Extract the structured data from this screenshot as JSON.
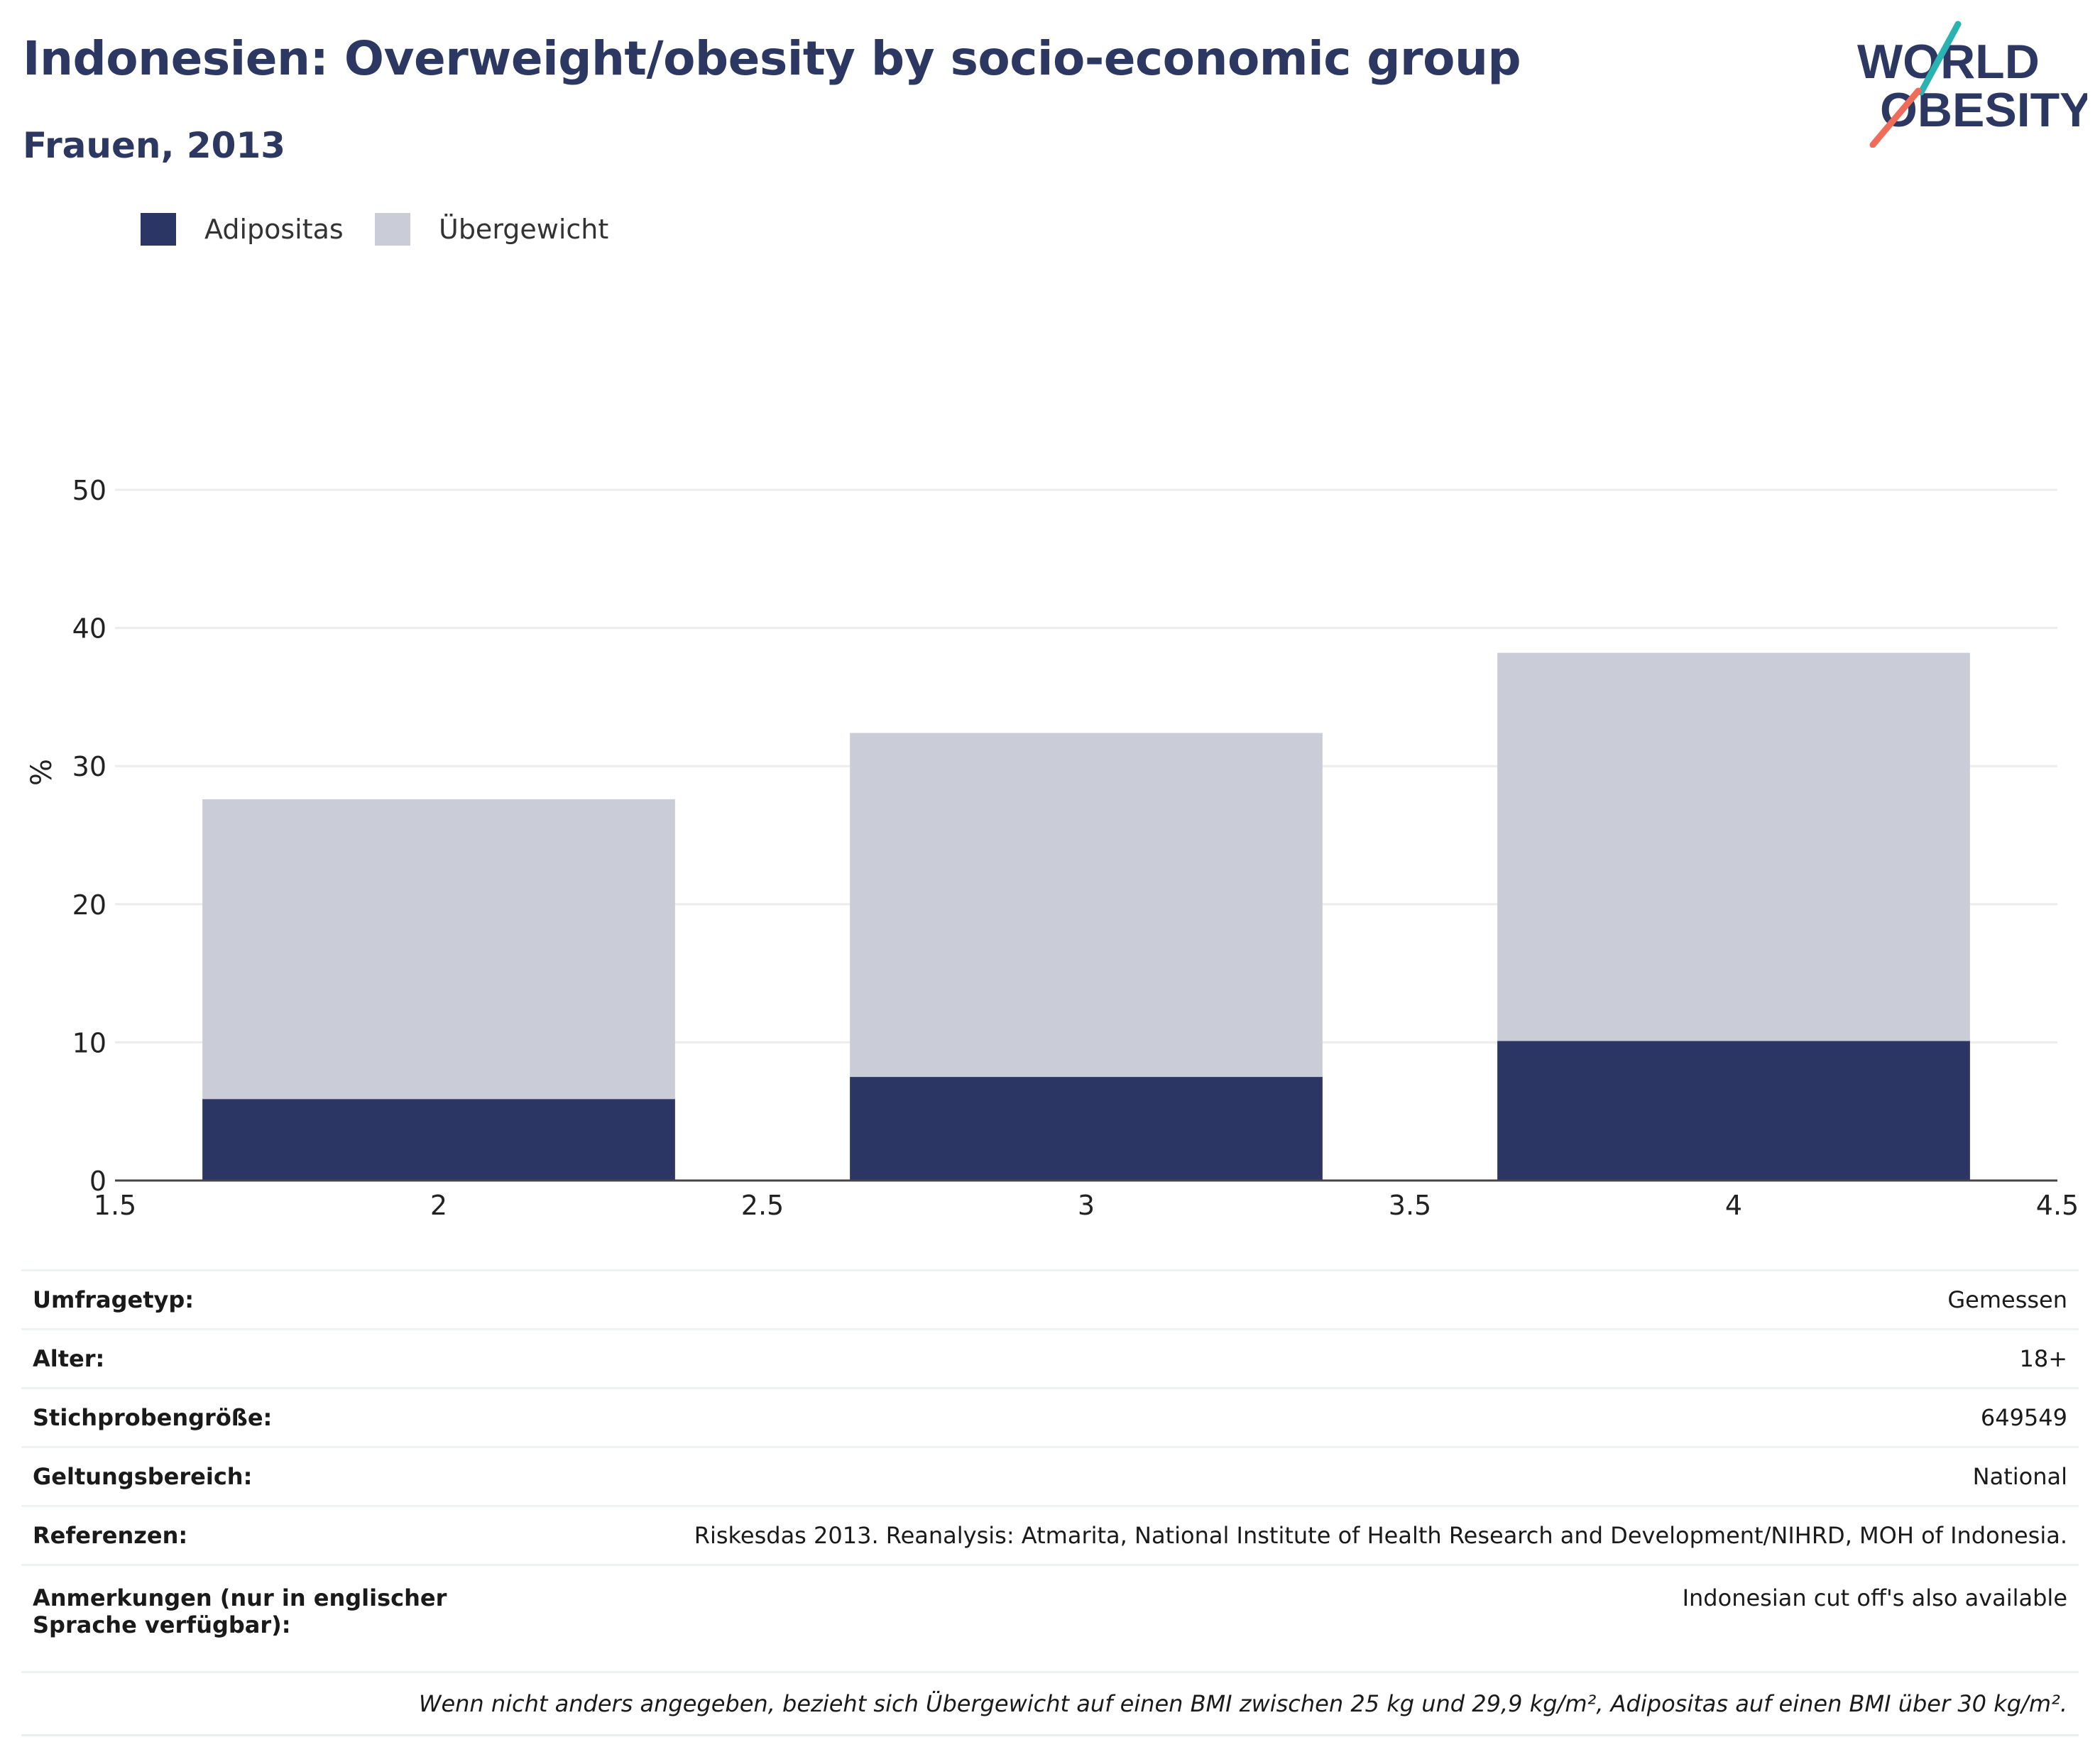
{
  "title": "Indonesien: Overweight/obesity by socio-economic group",
  "subtitle": "Frauen, 2013",
  "logo": {
    "line1": "WORLD",
    "line2": "OBESITY"
  },
  "colors": {
    "title": "#2c3862",
    "obesity": "#2b3664",
    "overweight": "#cacdd8",
    "grid": "#ececec",
    "logo_teal": "#2bb3b1",
    "logo_coral": "#ef6c5a"
  },
  "legend": [
    {
      "label": "Adipositas",
      "color": "#2b3664"
    },
    {
      "label": "Übergewicht",
      "color": "#cacdd8"
    }
  ],
  "chart_data": {
    "type": "bar",
    "stacked": true,
    "title": "Indonesien: Overweight/obesity by socio-economic group",
    "subtitle": "Frauen, 2013",
    "xlabel": "",
    "ylabel": "%",
    "x": [
      2,
      3,
      4
    ],
    "xlim": [
      1.5,
      4.5
    ],
    "ylim": [
      0,
      50
    ],
    "xticks": [
      "1.5",
      "2",
      "2.5",
      "3",
      "3.5",
      "4",
      "4.5"
    ],
    "yticks": [
      "0",
      "10",
      "20",
      "30",
      "40",
      "50"
    ],
    "grid": true,
    "legend_position": "top-left",
    "series": [
      {
        "name": "Adipositas",
        "values": [
          5.9,
          7.5,
          10.1
        ],
        "color": "#2b3664"
      },
      {
        "name": "Übergewicht",
        "values": [
          21.7,
          24.9,
          28.1
        ],
        "color": "#cacdd8"
      }
    ]
  },
  "info": [
    {
      "key": "Umfragetyp:",
      "value": "Gemessen"
    },
    {
      "key": "Alter:",
      "value": "18+"
    },
    {
      "key": "Stichprobengröße:",
      "value": "649549"
    },
    {
      "key": "Geltungsbereich:",
      "value": "National"
    },
    {
      "key": "Referenzen:",
      "value": "Riskesdas 2013. Reanalysis: Atmarita, National Institute of Health Research and Development/NIHRD, MOH of Indonesia."
    },
    {
      "key": "Anmerkungen (nur in englischer Sprache verfügbar):",
      "value": "Indonesian cut off's also available"
    }
  ],
  "footnote": "Wenn nicht anders angegeben, bezieht sich Übergewicht auf einen BMI zwischen 25 kg und 29,9 kg/m², Adipositas auf einen BMI über 30 kg/m²."
}
